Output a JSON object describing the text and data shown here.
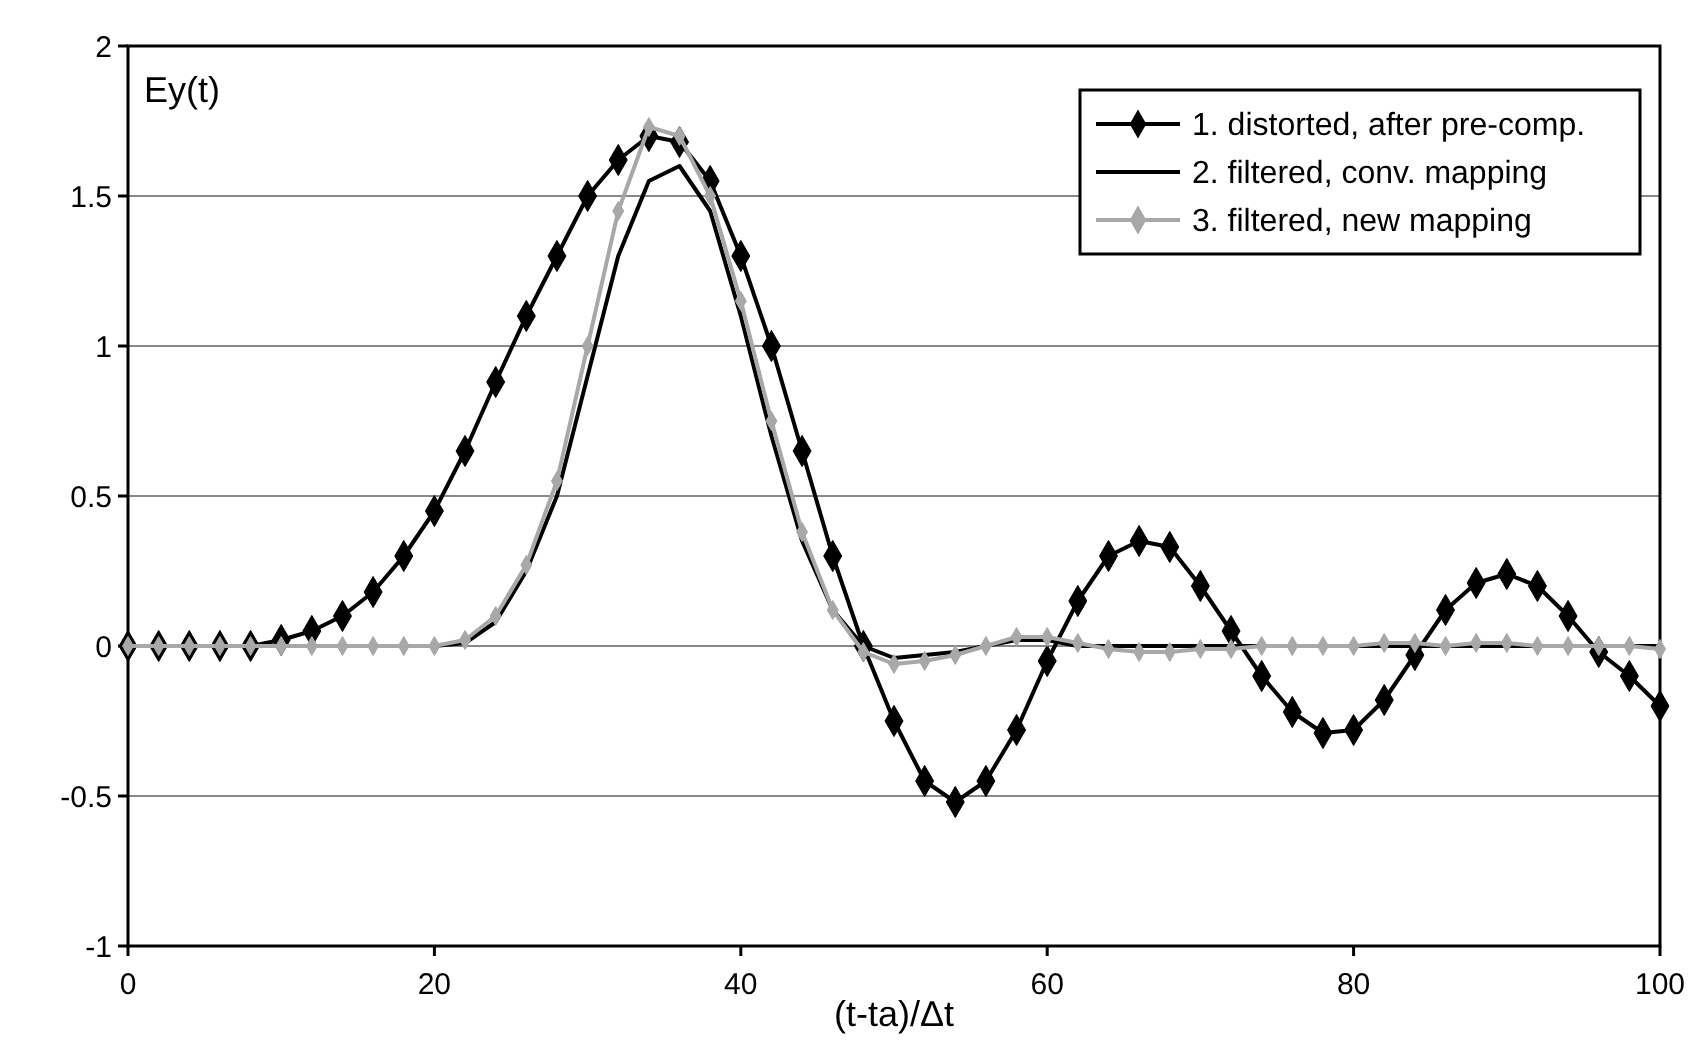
{
  "chart_data": {
    "type": "line",
    "xlabel": "(t-ta)/Δt",
    "ylabel": "Ey(t)",
    "x": [
      0,
      2,
      4,
      6,
      8,
      10,
      12,
      14,
      16,
      18,
      20,
      22,
      24,
      26,
      28,
      30,
      32,
      34,
      36,
      38,
      40,
      42,
      44,
      46,
      48,
      50,
      52,
      54,
      56,
      58,
      60,
      62,
      64,
      66,
      68,
      70,
      72,
      74,
      76,
      78,
      80,
      82,
      84,
      86,
      88,
      90,
      92,
      94,
      96,
      98,
      100
    ],
    "series": [
      {
        "name": "1. distorted, after pre-comp.",
        "color": "#000000",
        "marker": "diamond",
        "values": [
          0,
          0,
          0,
          0,
          0,
          0.02,
          0.05,
          0.1,
          0.18,
          0.3,
          0.45,
          0.65,
          0.88,
          1.1,
          1.3,
          1.5,
          1.62,
          1.7,
          1.68,
          1.55,
          1.3,
          1.0,
          0.65,
          0.3,
          0.0,
          -0.25,
          -0.45,
          -0.52,
          -0.45,
          -0.28,
          -0.05,
          0.15,
          0.3,
          0.35,
          0.33,
          0.2,
          0.05,
          -0.1,
          -0.22,
          -0.29,
          -0.28,
          -0.18,
          -0.03,
          0.12,
          0.21,
          0.24,
          0.2,
          0.1,
          -0.02,
          -0.1,
          -0.2
        ]
      },
      {
        "name": "2. filtered, conv. mapping",
        "color": "#000000",
        "marker": "none",
        "values": [
          0,
          0,
          0,
          0,
          0,
          0,
          0,
          0,
          0,
          0,
          0,
          0.01,
          0.08,
          0.25,
          0.5,
          0.9,
          1.3,
          1.55,
          1.6,
          1.45,
          1.1,
          0.7,
          0.35,
          0.12,
          0.0,
          -0.04,
          -0.03,
          -0.02,
          0,
          0.02,
          0.02,
          0,
          0,
          0,
          0,
          0,
          0,
          0,
          0,
          0,
          0,
          0,
          0,
          0,
          0,
          0,
          0,
          0,
          0,
          0,
          0
        ]
      },
      {
        "name": "3. filtered, new mapping",
        "color": "#a8a8a8",
        "marker": "diamond",
        "values": [
          0,
          0,
          0,
          0,
          0,
          0,
          0,
          0,
          0,
          0,
          0,
          0.02,
          0.1,
          0.27,
          0.55,
          1.0,
          1.45,
          1.73,
          1.7,
          1.5,
          1.15,
          0.75,
          0.38,
          0.12,
          -0.02,
          -0.06,
          -0.05,
          -0.03,
          0,
          0.03,
          0.03,
          0.01,
          -0.01,
          -0.02,
          -0.02,
          -0.01,
          -0.01,
          0,
          0,
          0,
          0,
          0.01,
          0.01,
          0,
          0.01,
          0.01,
          0,
          0,
          0,
          0,
          -0.01
        ]
      }
    ],
    "xlim": [
      0,
      100
    ],
    "xticks": [
      0,
      20,
      40,
      60,
      80,
      100
    ],
    "ylim": [
      -1,
      2
    ],
    "yticks": [
      -1,
      -0.5,
      0,
      0.5,
      1,
      1.5,
      2
    ],
    "grid": "y",
    "legend": "top right"
  }
}
